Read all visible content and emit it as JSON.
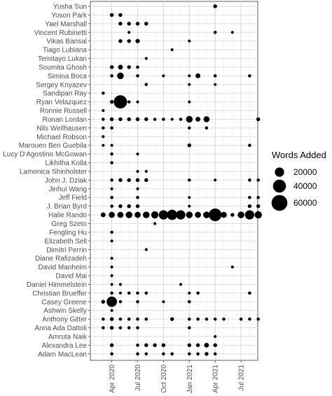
{
  "chart_data": {
    "type": "scatter",
    "x_ticks": [
      "Apr 2020",
      "Jul 2020",
      "Oct 2020",
      "Jan 2021",
      "Apr 2021",
      "Jul 2021"
    ],
    "x_tick_months": [
      "2020-04",
      "2020-07",
      "2020-10",
      "2021-01",
      "2021-04",
      "2021-07"
    ],
    "xlim": [
      "2020-02",
      "2021-09"
    ],
    "grid": true,
    "legend": {
      "title": "Words Added",
      "placement": "right",
      "sizes": [
        20000,
        40000,
        60000
      ],
      "labels": [
        "20000",
        "40000",
        "60000"
      ]
    },
    "contributors": [
      "Yusha Sun",
      "Yoson Park",
      "Yael Marshall",
      "Vincent Rubinetti",
      "Vikas Bansal",
      "Tiago Lubiana",
      "Temitayo Lukan",
      "Soumita Ghosh",
      "Simina Boca",
      "Sergey Knyazev",
      "Sandipan Ray",
      "Ryan Velazquez",
      "Ronnie Russell",
      "Ronan Lordan",
      "Nils Wellhausen",
      "Michael Robson",
      "Marouen Ben Guebila",
      "Lucy D'Agostino McGowan",
      "Likhitha Kolla",
      "Lamonica Shinholster",
      "John J. Dziak",
      "Jinhui Wang",
      "Jeff Field",
      "J. Brian Byrd",
      "Halie Rando",
      "Greg Szeto",
      "Fengling Hu",
      "Elizabeth Sell",
      "Dimitri Perrin",
      "Diane Rafizadeh",
      "David Manheim",
      "David Mai",
      "Daniel Himmelstein",
      "Christian Brueffer",
      "Casey Greene",
      "Ashwin Skelly",
      "Anthony Gitter",
      "Anna Ada Dattoli",
      "Amruta Naik",
      "Alexandra Lee",
      "Adam MacLean"
    ],
    "points": [
      {
        "name": "Yusha Sun",
        "month": "2021-04",
        "words": 3000
      },
      {
        "name": "Yoson Park",
        "month": "2020-04",
        "words": 3000
      },
      {
        "name": "Yoson Park",
        "month": "2020-05",
        "words": 3000
      },
      {
        "name": "Yael Marshall",
        "month": "2020-05",
        "words": 3000
      },
      {
        "name": "Yael Marshall",
        "month": "2020-06",
        "words": 3000
      },
      {
        "name": "Yael Marshall",
        "month": "2020-07",
        "words": 3000
      },
      {
        "name": "Yael Marshall",
        "month": "2020-08",
        "words": 3000
      },
      {
        "name": "Vincent Rubinetti",
        "month": "2020-06",
        "words": 1500
      },
      {
        "name": "Vincent Rubinetti",
        "month": "2021-04",
        "words": 2000
      },
      {
        "name": "Vincent Rubinetti",
        "month": "2021-06",
        "words": 1500
      },
      {
        "name": "Vikas Bansal",
        "month": "2020-05",
        "words": 3000
      },
      {
        "name": "Vikas Bansal",
        "month": "2020-06",
        "words": 3000
      },
      {
        "name": "Vikas Bansal",
        "month": "2020-07",
        "words": 4000
      },
      {
        "name": "Vikas Bansal",
        "month": "2021-01",
        "words": 1500
      },
      {
        "name": "Tiago Lubiana",
        "month": "2020-11",
        "words": 1500
      },
      {
        "name": "Temitayo Lukan",
        "month": "2020-08",
        "words": 1500
      },
      {
        "name": "Soumita Ghosh",
        "month": "2020-04",
        "words": 3000
      },
      {
        "name": "Soumita Ghosh",
        "month": "2020-05",
        "words": 5000
      },
      {
        "name": "Soumita Ghosh",
        "month": "2020-06",
        "words": 3000
      },
      {
        "name": "Soumita Ghosh",
        "month": "2020-07",
        "words": 2000
      },
      {
        "name": "Simina Boca",
        "month": "2020-04",
        "words": 2000
      },
      {
        "name": "Simina Boca",
        "month": "2020-05",
        "words": 10000
      },
      {
        "name": "Simina Boca",
        "month": "2020-07",
        "words": 2000
      },
      {
        "name": "Simina Boca",
        "month": "2020-10",
        "words": 1500
      },
      {
        "name": "Simina Boca",
        "month": "2021-01",
        "words": 1500
      },
      {
        "name": "Simina Boca",
        "month": "2021-02",
        "words": 5000
      },
      {
        "name": "Simina Boca",
        "month": "2021-04",
        "words": 2000
      },
      {
        "name": "Simina Boca",
        "month": "2021-08",
        "words": 2000
      },
      {
        "name": "Sergey Knyazev",
        "month": "2020-08",
        "words": 2000
      },
      {
        "name": "Sergey Knyazev",
        "month": "2021-01",
        "words": 1500
      },
      {
        "name": "Sergey Knyazev",
        "month": "2021-04",
        "words": 1500
      },
      {
        "name": "Sandipan Ray",
        "month": "2020-03",
        "words": 2000
      },
      {
        "name": "Ryan Velazquez",
        "month": "2020-04",
        "words": 3000
      },
      {
        "name": "Ryan Velazquez",
        "month": "2020-05",
        "words": 42000
      },
      {
        "name": "Ryan Velazquez",
        "month": "2020-06",
        "words": 2000
      },
      {
        "name": "Ryan Velazquez",
        "month": "2020-07",
        "words": 1500
      },
      {
        "name": "Ryan Velazquez",
        "month": "2021-01",
        "words": 1500
      },
      {
        "name": "Ronnie Russell",
        "month": "2020-03",
        "words": 1500
      },
      {
        "name": "Ronan Lordan",
        "month": "2020-03",
        "words": 2000
      },
      {
        "name": "Ronan Lordan",
        "month": "2020-04",
        "words": 3000
      },
      {
        "name": "Ronan Lordan",
        "month": "2020-05",
        "words": 3000
      },
      {
        "name": "Ronan Lordan",
        "month": "2020-06",
        "words": 3000
      },
      {
        "name": "Ronan Lordan",
        "month": "2020-07",
        "words": 3000
      },
      {
        "name": "Ronan Lordan",
        "month": "2020-08",
        "words": 3000
      },
      {
        "name": "Ronan Lordan",
        "month": "2020-09",
        "words": 2000
      },
      {
        "name": "Ronan Lordan",
        "month": "2020-10",
        "words": 2000
      },
      {
        "name": "Ronan Lordan",
        "month": "2020-11",
        "words": 1500
      },
      {
        "name": "Ronan Lordan",
        "month": "2020-12",
        "words": 2000
      },
      {
        "name": "Ronan Lordan",
        "month": "2021-01",
        "words": 10000
      },
      {
        "name": "Ronan Lordan",
        "month": "2021-02",
        "words": 5000
      },
      {
        "name": "Ronan Lordan",
        "month": "2021-03",
        "words": 8000
      },
      {
        "name": "Ronan Lordan",
        "month": "2021-09",
        "words": 3000
      },
      {
        "name": "Nils Wellhausen",
        "month": "2020-03",
        "words": 2000
      },
      {
        "name": "Nils Wellhausen",
        "month": "2020-04",
        "words": 2000
      },
      {
        "name": "Nils Wellhausen",
        "month": "2021-01",
        "words": 2000
      },
      {
        "name": "Nils Wellhausen",
        "month": "2021-03",
        "words": 2000
      },
      {
        "name": "Michael Robson",
        "month": "2020-03",
        "words": 1500
      },
      {
        "name": "Marouen Ben Guebila",
        "month": "2020-03",
        "words": 1500
      },
      {
        "name": "Marouen Ben Guebila",
        "month": "2020-04",
        "words": 1500
      },
      {
        "name": "Marouen Ben Guebila",
        "month": "2021-01",
        "words": 3000
      },
      {
        "name": "Marouen Ben Guebila",
        "month": "2021-08",
        "words": 2000
      },
      {
        "name": "Lucy D'Agostino McGowan",
        "month": "2020-04",
        "words": 2000
      },
      {
        "name": "Lucy D'Agostino McGowan",
        "month": "2020-07",
        "words": 1500
      },
      {
        "name": "Likhitha Kolla",
        "month": "2020-04",
        "words": 2000
      },
      {
        "name": "Lamonica Shinholster",
        "month": "2020-07",
        "words": 1500
      },
      {
        "name": "Lamonica Shinholster",
        "month": "2020-08",
        "words": 1500
      },
      {
        "name": "John J. Dziak",
        "month": "2020-04",
        "words": 2000
      },
      {
        "name": "John J. Dziak",
        "month": "2020-05",
        "words": 3000
      },
      {
        "name": "John J. Dziak",
        "month": "2020-06",
        "words": 3000
      },
      {
        "name": "John J. Dziak",
        "month": "2020-07",
        "words": 3000
      },
      {
        "name": "John J. Dziak",
        "month": "2020-08",
        "words": 3000
      },
      {
        "name": "John J. Dziak",
        "month": "2021-01",
        "words": 2000
      },
      {
        "name": "John J. Dziak",
        "month": "2021-04",
        "words": 1500
      },
      {
        "name": "John J. Dziak",
        "month": "2021-08",
        "words": 2000
      },
      {
        "name": "John J. Dziak",
        "month": "2021-09",
        "words": 2000
      },
      {
        "name": "Jinhui Wang",
        "month": "2020-04",
        "words": 1500
      },
      {
        "name": "Jinhui Wang",
        "month": "2020-07",
        "words": 1500
      },
      {
        "name": "Jeff Field",
        "month": "2020-04",
        "words": 2000
      },
      {
        "name": "Jeff Field",
        "month": "2020-07",
        "words": 2000
      },
      {
        "name": "Jeff Field",
        "month": "2021-01",
        "words": 1500
      },
      {
        "name": "Jeff Field",
        "month": "2021-08",
        "words": 2000
      },
      {
        "name": "Jeff Field",
        "month": "2021-09",
        "words": 2000
      },
      {
        "name": "J. Brian Byrd",
        "month": "2020-04",
        "words": 2000
      },
      {
        "name": "J. Brian Byrd",
        "month": "2020-05",
        "words": 3000
      },
      {
        "name": "J. Brian Byrd",
        "month": "2020-06",
        "words": 3000
      },
      {
        "name": "J. Brian Byrd",
        "month": "2020-07",
        "words": 3000
      },
      {
        "name": "J. Brian Byrd",
        "month": "2021-01",
        "words": 1500
      },
      {
        "name": "J. Brian Byrd",
        "month": "2021-08",
        "words": 3000
      },
      {
        "name": "J. Brian Byrd",
        "month": "2021-09",
        "words": 3000
      },
      {
        "name": "Halie Rando",
        "month": "2020-03",
        "words": 5000
      },
      {
        "name": "Halie Rando",
        "month": "2020-04",
        "words": 8000
      },
      {
        "name": "Halie Rando",
        "month": "2020-05",
        "words": 8000
      },
      {
        "name": "Halie Rando",
        "month": "2020-06",
        "words": 10000
      },
      {
        "name": "Halie Rando",
        "month": "2020-07",
        "words": 8000
      },
      {
        "name": "Halie Rando",
        "month": "2020-08",
        "words": 10000
      },
      {
        "name": "Halie Rando",
        "month": "2020-09",
        "words": 12000
      },
      {
        "name": "Halie Rando",
        "month": "2020-10",
        "words": 20000
      },
      {
        "name": "Halie Rando",
        "month": "2020-11",
        "words": 25000
      },
      {
        "name": "Halie Rando",
        "month": "2020-12",
        "words": 20000
      },
      {
        "name": "Halie Rando",
        "month": "2021-01",
        "words": 10000
      },
      {
        "name": "Halie Rando",
        "month": "2021-02",
        "words": 8000
      },
      {
        "name": "Halie Rando",
        "month": "2021-03",
        "words": 10000
      },
      {
        "name": "Halie Rando",
        "month": "2021-04",
        "words": 38000
      },
      {
        "name": "Halie Rando",
        "month": "2021-05",
        "words": 8000
      },
      {
        "name": "Halie Rando",
        "month": "2021-06",
        "words": 3000
      },
      {
        "name": "Halie Rando",
        "month": "2021-07",
        "words": 10000
      },
      {
        "name": "Halie Rando",
        "month": "2021-08",
        "words": 20000
      },
      {
        "name": "Halie Rando",
        "month": "2021-09",
        "words": 12000
      },
      {
        "name": "Greg Szeto",
        "month": "2020-09",
        "words": 1500
      },
      {
        "name": "Fengling Hu",
        "month": "2020-04",
        "words": 2000
      },
      {
        "name": "Elizabeth Sell",
        "month": "2020-04",
        "words": 1500
      },
      {
        "name": "Dimitri Perrin",
        "month": "2020-08",
        "words": 1500
      },
      {
        "name": "Diane Rafizadeh",
        "month": "2020-04",
        "words": 1500
      },
      {
        "name": "David Manheim",
        "month": "2020-04",
        "words": 1500
      },
      {
        "name": "David Manheim",
        "month": "2021-06",
        "words": 1500
      },
      {
        "name": "David Mai",
        "month": "2020-04",
        "words": 1500
      },
      {
        "name": "Daniel Himmelstein",
        "month": "2020-04",
        "words": 1500
      },
      {
        "name": "Daniel Himmelstein",
        "month": "2020-05",
        "words": 1500
      },
      {
        "name": "Daniel Himmelstein",
        "month": "2020-12",
        "words": 1500
      },
      {
        "name": "Christian Brueffer",
        "month": "2020-04",
        "words": 2000
      },
      {
        "name": "Christian Brueffer",
        "month": "2020-05",
        "words": 1500
      },
      {
        "name": "Christian Brueffer",
        "month": "2020-06",
        "words": 2000
      },
      {
        "name": "Christian Brueffer",
        "month": "2020-07",
        "words": 2000
      },
      {
        "name": "Christian Brueffer",
        "month": "2020-08",
        "words": 2000
      },
      {
        "name": "Christian Brueffer",
        "month": "2021-01",
        "words": 1500
      },
      {
        "name": "Christian Brueffer",
        "month": "2021-02",
        "words": 2000
      },
      {
        "name": "Christian Brueffer",
        "month": "2021-08",
        "words": 2000
      },
      {
        "name": "Casey Greene",
        "month": "2020-03",
        "words": 3000
      },
      {
        "name": "Casey Greene",
        "month": "2020-04",
        "words": 25000
      },
      {
        "name": "Casey Greene",
        "month": "2020-05",
        "words": 2000
      },
      {
        "name": "Casey Greene",
        "month": "2020-07",
        "words": 2000
      },
      {
        "name": "Casey Greene",
        "month": "2020-10",
        "words": 1500
      },
      {
        "name": "Casey Greene",
        "month": "2021-01",
        "words": 2000
      },
      {
        "name": "Ashwin Skelly",
        "month": "2020-04",
        "words": 1500
      },
      {
        "name": "Anthony Gitter",
        "month": "2020-03",
        "words": 2000
      },
      {
        "name": "Anthony Gitter",
        "month": "2020-04",
        "words": 3000
      },
      {
        "name": "Anthony Gitter",
        "month": "2020-05",
        "words": 2000
      },
      {
        "name": "Anthony Gitter",
        "month": "2020-06",
        "words": 2000
      },
      {
        "name": "Anthony Gitter",
        "month": "2020-07",
        "words": 2000
      },
      {
        "name": "Anthony Gitter",
        "month": "2020-08",
        "words": 2000
      },
      {
        "name": "Anthony Gitter",
        "month": "2020-11",
        "words": 3000
      },
      {
        "name": "Anthony Gitter",
        "month": "2021-01",
        "words": 2000
      },
      {
        "name": "Anthony Gitter",
        "month": "2021-02",
        "words": 2000
      },
      {
        "name": "Anthony Gitter",
        "month": "2021-03",
        "words": 2000
      },
      {
        "name": "Anthony Gitter",
        "month": "2021-04",
        "words": 2000
      },
      {
        "name": "Anthony Gitter",
        "month": "2021-05",
        "words": 2000
      },
      {
        "name": "Anthony Gitter",
        "month": "2021-07",
        "words": 2000
      },
      {
        "name": "Anthony Gitter",
        "month": "2021-08",
        "words": 2000
      },
      {
        "name": "Anthony Gitter",
        "month": "2021-09",
        "words": 2000
      },
      {
        "name": "Anna Ada Dattoli",
        "month": "2020-03",
        "words": 2000
      },
      {
        "name": "Anna Ada Dattoli",
        "month": "2020-04",
        "words": 3000
      },
      {
        "name": "Anna Ada Dattoli",
        "month": "2020-05",
        "words": 2000
      },
      {
        "name": "Anna Ada Dattoli",
        "month": "2020-06",
        "words": 2000
      },
      {
        "name": "Anna Ada Dattoli",
        "month": "2020-07",
        "words": 2000
      },
      {
        "name": "Anna Ada Dattoli",
        "month": "2021-01",
        "words": 2000
      },
      {
        "name": "Amruta Naik",
        "month": "2021-04",
        "words": 1500
      },
      {
        "name": "Alexandra Lee",
        "month": "2020-04",
        "words": 3000
      },
      {
        "name": "Alexandra Lee",
        "month": "2020-07",
        "words": 2000
      },
      {
        "name": "Alexandra Lee",
        "month": "2020-08",
        "words": 3000
      },
      {
        "name": "Alexandra Lee",
        "month": "2020-09",
        "words": 3000
      },
      {
        "name": "Alexandra Lee",
        "month": "2020-10",
        "words": 3000
      },
      {
        "name": "Alexandra Lee",
        "month": "2021-01",
        "words": 3000
      },
      {
        "name": "Alexandra Lee",
        "month": "2021-02",
        "words": 3000
      },
      {
        "name": "Alexandra Lee",
        "month": "2021-03",
        "words": 5000
      },
      {
        "name": "Alexandra Lee",
        "month": "2021-04",
        "words": 3000
      },
      {
        "name": "Adam MacLean",
        "month": "2020-04",
        "words": 2000
      },
      {
        "name": "Adam MacLean",
        "month": "2020-07",
        "words": 2000
      },
      {
        "name": "Adam MacLean",
        "month": "2020-08",
        "words": 2000
      },
      {
        "name": "Adam MacLean",
        "month": "2020-10",
        "words": 2000
      },
      {
        "name": "Adam MacLean",
        "month": "2020-11",
        "words": 2000
      },
      {
        "name": "Adam MacLean",
        "month": "2021-01",
        "words": 2000
      },
      {
        "name": "Adam MacLean",
        "month": "2021-02",
        "words": 2000
      },
      {
        "name": "Adam MacLean",
        "month": "2021-03",
        "words": 3000
      },
      {
        "name": "Adam MacLean",
        "month": "2021-04",
        "words": 2000
      }
    ]
  }
}
